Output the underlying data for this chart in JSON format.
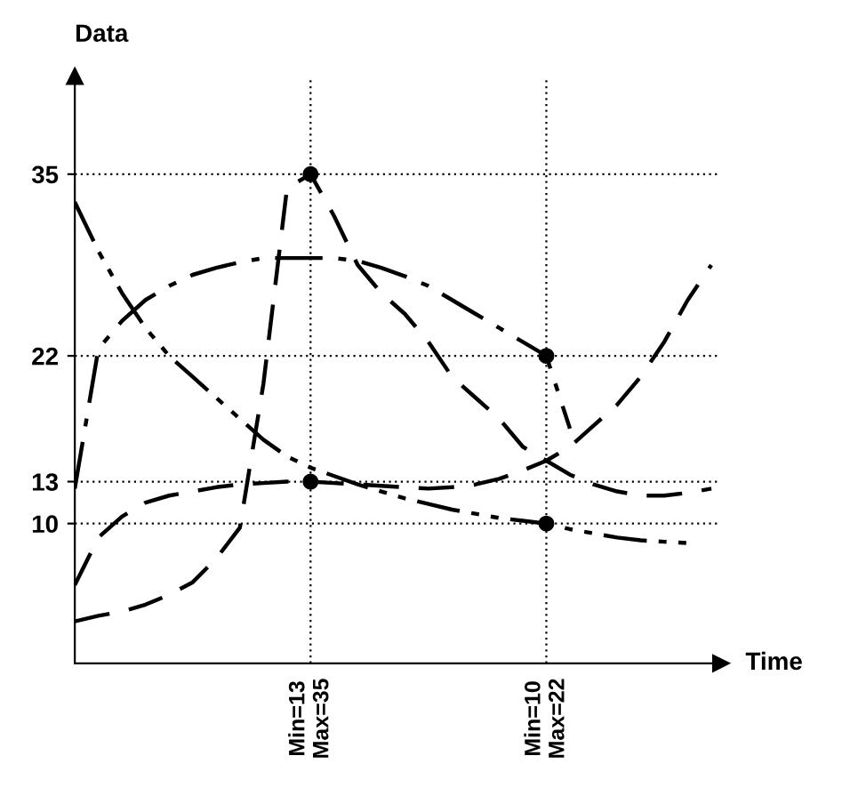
{
  "chart_data": {
    "type": "line",
    "xlabel": "Time",
    "ylabel": "Data",
    "categories": [
      null,
      null,
      null,
      null,
      null,
      null,
      null,
      null,
      null,
      null,
      "Min=13\nMax=35",
      null,
      null,
      null,
      null,
      null,
      null,
      null,
      null,
      null,
      "Min=10\nMax=22",
      null,
      null,
      null,
      null,
      null,
      null,
      null
    ],
    "ylim": [
      0,
      42
    ],
    "yticks": [
      10,
      13,
      22,
      35
    ],
    "grid": true,
    "series": [
      {
        "color": "#000000",
        "line_style": "dashed",
        "values": [
          3,
          3.4,
          3.7,
          4.2,
          4.9,
          5.8,
          7.5,
          9.7,
          20,
          34,
          35,
          32,
          28.5,
          26.5,
          25,
          23,
          20.5,
          19,
          17.5,
          15.5,
          14.5,
          13.5,
          12.8,
          12.3,
          12,
          12,
          12.2,
          12.5
        ]
      },
      {
        "color": "#000000",
        "line_style": "dashdot",
        "values": [
          12.5,
          22.5,
          24.5,
          26,
          27,
          27.8,
          28.3,
          28.7,
          29,
          29,
          29,
          29,
          28.8,
          28.3,
          27.7,
          27,
          26,
          25,
          24,
          23,
          22,
          16.8,
          null,
          null,
          null,
          null,
          null,
          null
        ]
      },
      {
        "color": "#000000",
        "line_style": "dashed",
        "values": [
          5.6,
          9,
          10.5,
          11.5,
          12,
          12.3,
          12.6,
          12.8,
          12.9,
          13,
          13,
          12.9,
          12.8,
          12.7,
          12.6,
          12.5,
          12.6,
          12.8,
          13.2,
          13.8,
          14.5,
          15.5,
          17,
          18.5,
          20.5,
          23,
          26,
          28.5
        ]
      },
      {
        "color": "#000000",
        "line_style": "dashdotdot",
        "values": [
          33,
          29.5,
          26.5,
          24,
          22,
          20.5,
          19,
          17.5,
          16,
          14.8,
          14,
          13.4,
          12.8,
          12.3,
          11.8,
          11.4,
          11,
          10.7,
          10.4,
          10.2,
          10,
          9.6,
          9.3,
          9,
          8.8,
          8.7,
          8.6,
          null
        ]
      },
      {
        "type": "scatter",
        "color": "#000000",
        "marker": "circle",
        "values": [
          null,
          null,
          null,
          null,
          null,
          null,
          null,
          null,
          null,
          null,
          35,
          null,
          null,
          null,
          null,
          null,
          null,
          null,
          null,
          null,
          22,
          null,
          null,
          null,
          null,
          null,
          null,
          null
        ]
      },
      {
        "type": "scatter",
        "color": "#000000",
        "marker": "circle",
        "values": [
          null,
          null,
          null,
          null,
          null,
          null,
          null,
          null,
          null,
          null,
          13,
          null,
          null,
          null,
          null,
          null,
          null,
          null,
          null,
          null,
          10,
          null,
          null,
          null,
          null,
          null,
          null,
          null
        ]
      }
    ]
  }
}
